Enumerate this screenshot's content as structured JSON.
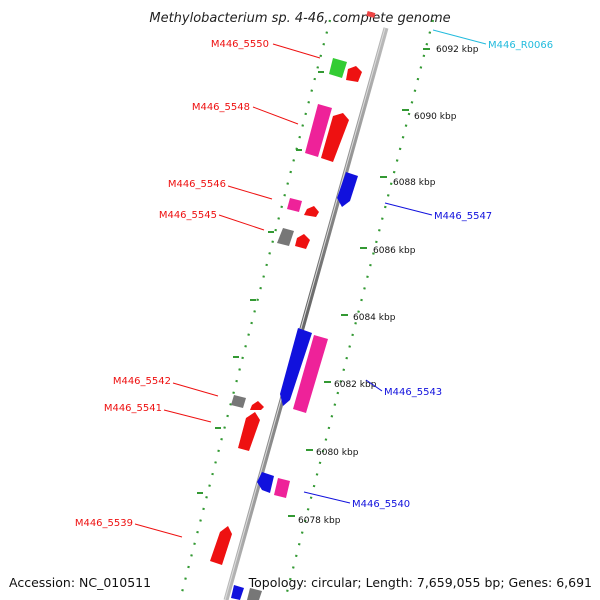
{
  "title": "Methylobacterium sp. 4-46, complete genome",
  "footer": {
    "accession": "Accession: NC_010511",
    "summary": "Topology: circular; Length: 7,659,055 bp; Genes: 6,691"
  },
  "colors": {
    "forward_gene": "#ee1111",
    "reverse_gene": "#1111dd",
    "rna_label": "#22bbdd",
    "magenta_gene": "#ee2299",
    "green_gene": "#33cc33",
    "gray_gene": "#777777",
    "dotted_track": "#339933",
    "backbone": "#888888"
  },
  "ticks": [
    {
      "kbp": 6092,
      "label": "6092 kbp"
    },
    {
      "kbp": 6090,
      "label": "6090 kbp"
    },
    {
      "kbp": 6088,
      "label": "6088 kbp"
    },
    {
      "kbp": 6086,
      "label": "6086 kbp"
    },
    {
      "kbp": 6084,
      "label": "6084 kbp"
    },
    {
      "kbp": 6082,
      "label": "6082 kbp"
    },
    {
      "kbp": 6080,
      "label": "6080 kbp"
    },
    {
      "kbp": 6078,
      "label": "6078 kbp"
    }
  ],
  "gene_labels": [
    {
      "id": "M446_R0066",
      "color": "rna"
    },
    {
      "id": "M446_5550",
      "color": "forward"
    },
    {
      "id": "M446_5548",
      "color": "forward"
    },
    {
      "id": "M446_5547",
      "color": "reverse"
    },
    {
      "id": "M446_5546",
      "color": "forward"
    },
    {
      "id": "M446_5545",
      "color": "forward"
    },
    {
      "id": "M446_5543",
      "color": "reverse"
    },
    {
      "id": "M446_5542",
      "color": "forward"
    },
    {
      "id": "M446_5541",
      "color": "forward"
    },
    {
      "id": "M446_5540",
      "color": "reverse"
    },
    {
      "id": "M446_5539",
      "color": "forward"
    }
  ]
}
